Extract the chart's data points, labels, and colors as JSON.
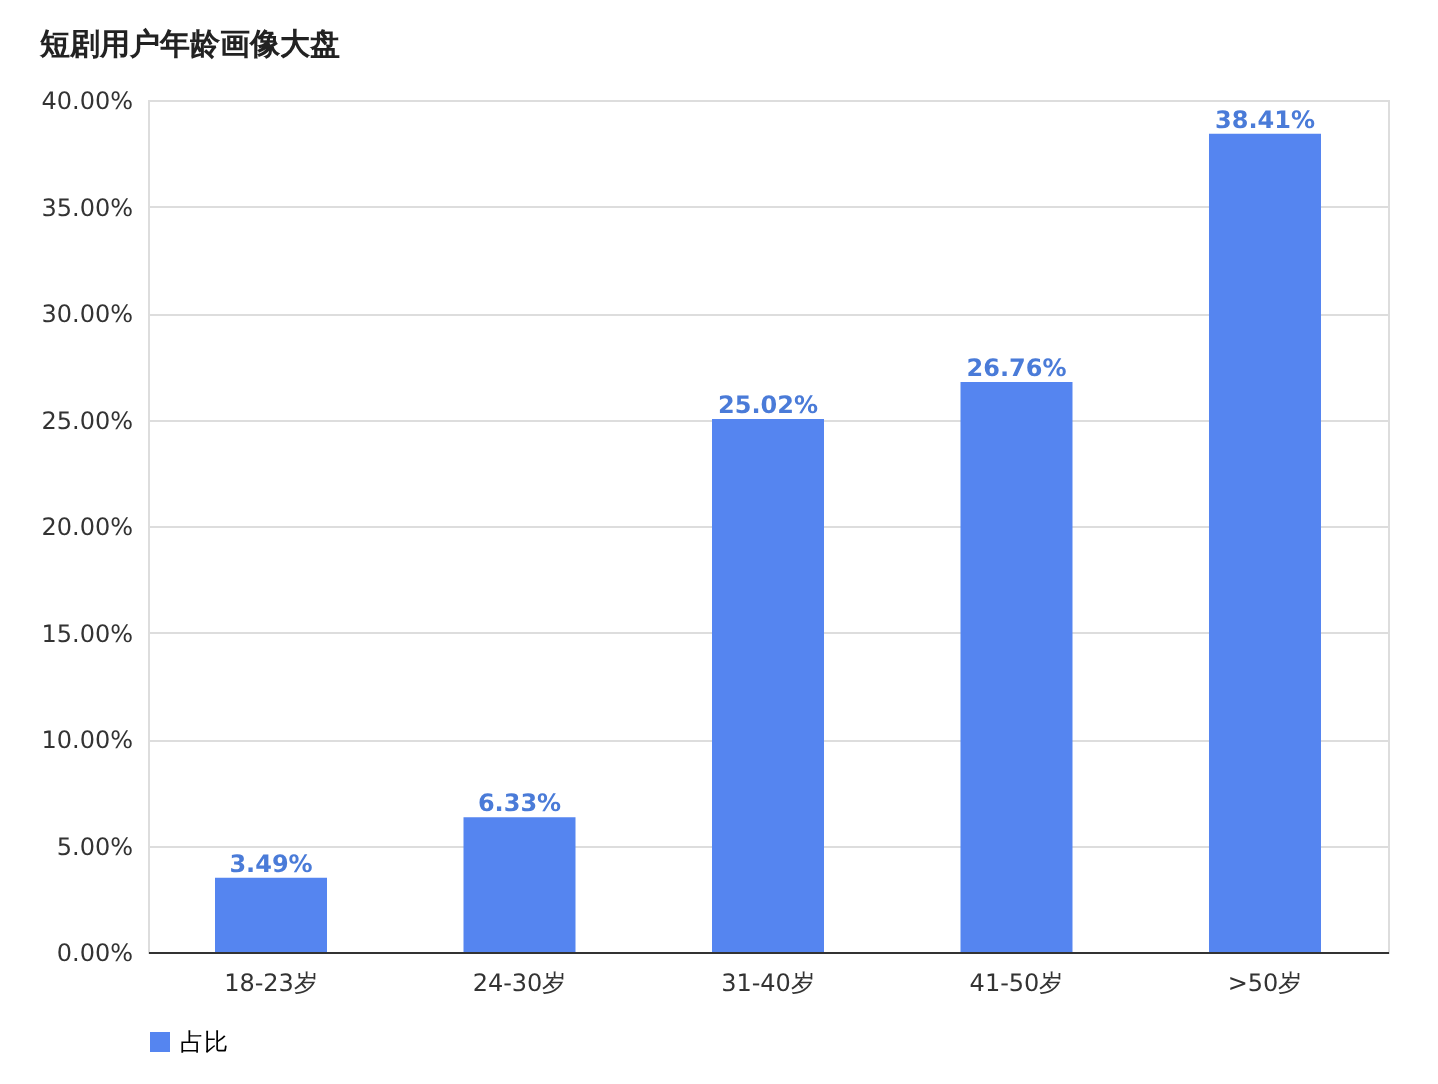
{
  "chart_data": {
    "type": "bar",
    "title": "短剧用户年龄画像大盘",
    "categories": [
      "18-23岁",
      "24-30岁",
      "31-40岁",
      "41-50岁",
      ">50岁"
    ],
    "series": [
      {
        "name": "占比",
        "color": "#5585f0",
        "values": [
          3.49,
          6.33,
          25.02,
          26.76,
          38.41
        ],
        "value_labels": [
          "3.49%",
          "6.33%",
          "25.02%",
          "26.76%",
          "38.41%"
        ]
      }
    ],
    "ylim": [
      0,
      40
    ],
    "yticks": [
      {
        "value": 0,
        "label": "0.00%"
      },
      {
        "value": 5,
        "label": "5.00%"
      },
      {
        "value": 10,
        "label": "10.00%"
      },
      {
        "value": 15,
        "label": "15.00%"
      },
      {
        "value": 20,
        "label": "20.00%"
      },
      {
        "value": 25,
        "label": "25.00%"
      },
      {
        "value": 30,
        "label": "30.00%"
      },
      {
        "value": 35,
        "label": "35.00%"
      },
      {
        "value": 40,
        "label": "40.00%"
      }
    ],
    "grid": "y",
    "legend": "bottom"
  }
}
